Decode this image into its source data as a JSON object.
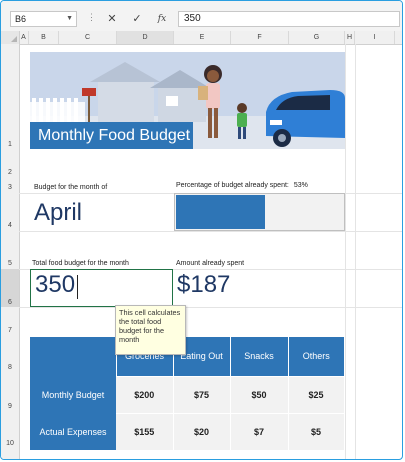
{
  "formula_bar": {
    "name_box": "B6",
    "cancel_symbol": "✕",
    "enter_symbol": "✓",
    "fx_label": "fx",
    "value": "350"
  },
  "columns": [
    "A",
    "B",
    "C",
    "D",
    "E",
    "F",
    "G",
    "H",
    "I"
  ],
  "rows": [
    "1",
    "2",
    "3",
    "4",
    "5",
    "6",
    "7",
    "8",
    "9",
    "10"
  ],
  "banner": {
    "title": "Monthly Food Budget"
  },
  "budget_month": {
    "label": "Budget for the month of",
    "value": "April"
  },
  "percent_spent": {
    "label": "Percentage of budget already spent:",
    "value": "53%",
    "fraction": 0.53
  },
  "total_budget": {
    "label": "Total food budget for the month",
    "value": "350"
  },
  "amount_spent": {
    "label": "Amount already spent",
    "value": "$187"
  },
  "tooltip": {
    "text": "This cell calculates the total food budget for the month"
  },
  "table": {
    "headers": [
      "",
      "Groceries",
      "Eating Out",
      "Snacks",
      "Others"
    ],
    "rows": [
      {
        "label": "Monthly Budget",
        "values": [
          "$200",
          "$75",
          "$50",
          "$25"
        ]
      },
      {
        "label": "Actual Expenses",
        "values": [
          "$155",
          "$20",
          "$7",
          "$5"
        ]
      }
    ]
  },
  "colors": {
    "accent": "#2e75b6",
    "title_text": "#1f3864",
    "selection": "#217346",
    "tooltip_bg": "#ffffe1",
    "frame": "#2a9ee0"
  }
}
